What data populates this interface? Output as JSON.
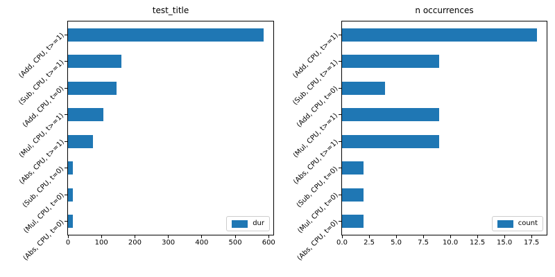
{
  "figure": {
    "background": "#ffffff",
    "bar_color": "#1f77b4",
    "spine_color": "#000000",
    "text_color": "#000000"
  },
  "chart_data": [
    {
      "type": "bar",
      "orientation": "horizontal",
      "title": "test_title",
      "categories": [
        "(Add, CPU, t>=1)",
        "(Sub, CPU, t>=1)",
        "(Add, CPU, t=0)",
        "(Mul, CPU, t>=1)",
        "(Abs, CPU, t>=1)",
        "(Sub, CPU, t=0)",
        "(Mul, CPU, t=0)",
        "(Abs, CPU, t=0)"
      ],
      "series": [
        {
          "name": "dur",
          "values": [
            585,
            160,
            145,
            105,
            75,
            15,
            15,
            15
          ]
        }
      ],
      "xlim": [
        0,
        614
      ],
      "xticks": [
        0,
        100,
        200,
        300,
        400,
        500,
        600
      ],
      "xtick_labels": [
        "0",
        "100",
        "200",
        "300",
        "400",
        "500",
        "600"
      ],
      "legend": {
        "position": "lower right",
        "entries": [
          "dur"
        ]
      },
      "grid": false
    },
    {
      "type": "bar",
      "orientation": "horizontal",
      "title": "n occurrences",
      "categories": [
        "(Add, CPU, t>=1)",
        "(Sub, CPU, t>=1)",
        "(Add, CPU, t=0)",
        "(Mul, CPU, t>=1)",
        "(Abs, CPU, t>=1)",
        "(Sub, CPU, t=0)",
        "(Mul, CPU, t=0)",
        "(Abs, CPU, t=0)"
      ],
      "series": [
        {
          "name": "count",
          "values": [
            18,
            9,
            4,
            9,
            9,
            2,
            2,
            2
          ]
        }
      ],
      "xlim": [
        0,
        18.9
      ],
      "xticks": [
        0,
        2.5,
        5,
        7.5,
        10,
        12.5,
        15,
        17.5
      ],
      "xtick_labels": [
        "0.0",
        "2.5",
        "5.0",
        "7.5",
        "10.0",
        "12.5",
        "15.0",
        "17.5"
      ],
      "legend": {
        "position": "lower right",
        "entries": [
          "count"
        ]
      },
      "grid": false
    }
  ]
}
